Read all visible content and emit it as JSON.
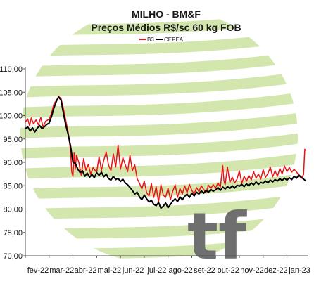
{
  "chart_data": {
    "type": "line",
    "title": "MILHO - BM&F",
    "subtitle": "Preços Médios R$/sc 60 kg FOB",
    "legend_position": "top",
    "ylim": [
      70,
      110
    ],
    "y_ticks": [
      "110,00",
      "105,00",
      "100,00",
      "95,00",
      "90,00",
      "85,00",
      "80,00",
      "75,00",
      "70,00"
    ],
    "y_tick_values": [
      110,
      105,
      100,
      95,
      90,
      85,
      80,
      75,
      70
    ],
    "x_ticks": [
      "fev-22",
      "mar-22",
      "abr-22",
      "mai-22",
      "jun-22",
      "jul-22",
      "ago-22",
      "set-22",
      "out-22",
      "nov-22",
      "dez-22",
      "jan-23"
    ],
    "xlim": [
      0,
      11.9
    ],
    "grid": false,
    "watermark_text": "tf",
    "colors": {
      "b3": "#ee1111",
      "cepea": "#000000",
      "bands": "#d3e6ad",
      "watermark": "#6f6f6f"
    },
    "series": [
      {
        "name": "B3",
        "color": "#ee1111",
        "points": [
          [
            0.0,
            98.6
          ],
          [
            0.1,
            99.3
          ],
          [
            0.18,
            97.8
          ],
          [
            0.25,
            99.5
          ],
          [
            0.35,
            98.2
          ],
          [
            0.45,
            99.1
          ],
          [
            0.55,
            98.0
          ],
          [
            0.65,
            99.6
          ],
          [
            0.75,
            97.5
          ],
          [
            0.85,
            98.8
          ],
          [
            1.0,
            99.2
          ],
          [
            1.1,
            100.5
          ],
          [
            1.2,
            102.5
          ],
          [
            1.3,
            103.2
          ],
          [
            1.4,
            104.1
          ],
          [
            1.5,
            103.7
          ],
          [
            1.6,
            101.5
          ],
          [
            1.7,
            99.0
          ],
          [
            1.8,
            96.5
          ],
          [
            1.9,
            92.5
          ],
          [
            1.95,
            88.0
          ],
          [
            2.0,
            87.0
          ],
          [
            2.05,
            92.0
          ],
          [
            2.1,
            88.5
          ],
          [
            2.15,
            91.5
          ],
          [
            2.25,
            90.0
          ],
          [
            2.35,
            87.2
          ],
          [
            2.45,
            90.8
          ],
          [
            2.55,
            88.3
          ],
          [
            2.65,
            89.6
          ],
          [
            2.75,
            87.4
          ],
          [
            2.85,
            88.9
          ],
          [
            3.0,
            87.8
          ],
          [
            3.1,
            91.2
          ],
          [
            3.2,
            88.3
          ],
          [
            3.3,
            90.5
          ],
          [
            3.4,
            92.2
          ],
          [
            3.5,
            89.4
          ],
          [
            3.6,
            88.2
          ],
          [
            3.7,
            91.8
          ],
          [
            3.8,
            89.0
          ],
          [
            3.9,
            93.7
          ],
          [
            4.0,
            88.5
          ],
          [
            4.1,
            91.0
          ],
          [
            4.2,
            89.5
          ],
          [
            4.3,
            88.0
          ],
          [
            4.4,
            91.5
          ],
          [
            4.5,
            88.2
          ],
          [
            4.6,
            89.5
          ],
          [
            4.7,
            86.5
          ],
          [
            4.8,
            85.5
          ],
          [
            4.9,
            84.3
          ],
          [
            5.0,
            86.0
          ],
          [
            5.1,
            83.5
          ],
          [
            5.2,
            82.8
          ],
          [
            5.3,
            85.5
          ],
          [
            5.4,
            82.5
          ],
          [
            5.5,
            84.8
          ],
          [
            5.6,
            81.5
          ],
          [
            5.7,
            85.2
          ],
          [
            5.8,
            83.0
          ],
          [
            5.9,
            82.5
          ],
          [
            6.0,
            84.5
          ],
          [
            6.1,
            82.0
          ],
          [
            6.2,
            83.8
          ],
          [
            6.3,
            85.2
          ],
          [
            6.4,
            82.5
          ],
          [
            6.5,
            84.4
          ],
          [
            6.6,
            83.2
          ],
          [
            6.7,
            85.0
          ],
          [
            6.8,
            83.5
          ],
          [
            6.9,
            85.3
          ],
          [
            7.0,
            84.0
          ],
          [
            7.1,
            83.2
          ],
          [
            7.2,
            84.6
          ],
          [
            7.3,
            83.7
          ],
          [
            7.4,
            85.0
          ],
          [
            7.5,
            84.2
          ],
          [
            7.6,
            83.6
          ],
          [
            7.7,
            85.1
          ],
          [
            7.8,
            84.4
          ],
          [
            7.9,
            85.2
          ],
          [
            8.0,
            84.5
          ],
          [
            8.1,
            85.6
          ],
          [
            8.2,
            84.7
          ],
          [
            8.3,
            89.3
          ],
          [
            8.35,
            86.0
          ],
          [
            8.4,
            85.2
          ],
          [
            8.5,
            89.0
          ],
          [
            8.6,
            85.7
          ],
          [
            8.7,
            86.8
          ],
          [
            8.8,
            85.6
          ],
          [
            8.9,
            86.4
          ],
          [
            9.0,
            88.2
          ],
          [
            9.1,
            85.5
          ],
          [
            9.2,
            87.0
          ],
          [
            9.3,
            86.0
          ],
          [
            9.4,
            87.2
          ],
          [
            9.5,
            86.2
          ],
          [
            9.6,
            88.0
          ],
          [
            9.7,
            86.6
          ],
          [
            9.8,
            87.5
          ],
          [
            9.9,
            86.4
          ],
          [
            10.0,
            88.4
          ],
          [
            10.1,
            86.8
          ],
          [
            10.2,
            87.6
          ],
          [
            10.3,
            89.0
          ],
          [
            10.4,
            86.9
          ],
          [
            10.5,
            88.2
          ],
          [
            10.6,
            87.0
          ],
          [
            10.7,
            88.7
          ],
          [
            10.8,
            87.5
          ],
          [
            10.9,
            89.2
          ],
          [
            11.0,
            88.0
          ],
          [
            11.1,
            88.9
          ],
          [
            11.2,
            87.9
          ],
          [
            11.3,
            88.5
          ],
          [
            11.4,
            88.0
          ],
          [
            11.5,
            87.2
          ],
          [
            11.6,
            86.6
          ],
          [
            11.7,
            87.4
          ],
          [
            11.75,
            92.8
          ],
          [
            11.8,
            92.5
          ]
        ]
      },
      {
        "name": "CEPEA",
        "color": "#000000",
        "points": [
          [
            0.0,
            97.2
          ],
          [
            0.1,
            97.6
          ],
          [
            0.2,
            96.7
          ],
          [
            0.3,
            97.4
          ],
          [
            0.4,
            96.5
          ],
          [
            0.5,
            97.3
          ],
          [
            0.6,
            97.9
          ],
          [
            0.7,
            97.2
          ],
          [
            0.8,
            97.6
          ],
          [
            0.9,
            98.1
          ],
          [
            1.0,
            98.4
          ],
          [
            1.1,
            99.8
          ],
          [
            1.2,
            101.6
          ],
          [
            1.3,
            103.0
          ],
          [
            1.4,
            104.0
          ],
          [
            1.5,
            103.3
          ],
          [
            1.6,
            100.5
          ],
          [
            1.7,
            98.0
          ],
          [
            1.8,
            96.0
          ],
          [
            1.9,
            93.5
          ],
          [
            2.0,
            90.0
          ],
          [
            2.1,
            89.8
          ],
          [
            2.2,
            88.6
          ],
          [
            2.3,
            87.8
          ],
          [
            2.4,
            88.2
          ],
          [
            2.5,
            87.0
          ],
          [
            2.6,
            87.7
          ],
          [
            2.7,
            86.8
          ],
          [
            2.8,
            87.4
          ],
          [
            2.9,
            86.7
          ],
          [
            3.0,
            87.8
          ],
          [
            3.1,
            87.2
          ],
          [
            3.2,
            87.9
          ],
          [
            3.3,
            86.9
          ],
          [
            3.4,
            87.5
          ],
          [
            3.5,
            86.5
          ],
          [
            3.6,
            86.2
          ],
          [
            3.7,
            87.0
          ],
          [
            3.8,
            86.3
          ],
          [
            3.9,
            86.6
          ],
          [
            4.0,
            85.9
          ],
          [
            4.1,
            86.4
          ],
          [
            4.2,
            85.6
          ],
          [
            4.3,
            85.2
          ],
          [
            4.4,
            84.6
          ],
          [
            4.5,
            84.0
          ],
          [
            4.6,
            83.2
          ],
          [
            4.7,
            83.6
          ],
          [
            4.8,
            82.6
          ],
          [
            4.9,
            82.0
          ],
          [
            5.0,
            83.0
          ],
          [
            5.1,
            82.2
          ],
          [
            5.2,
            81.5
          ],
          [
            5.3,
            81.9
          ],
          [
            5.4,
            81.0
          ],
          [
            5.5,
            80.7
          ],
          [
            5.6,
            81.4
          ],
          [
            5.7,
            80.2
          ],
          [
            5.8,
            80.6
          ],
          [
            5.9,
            81.3
          ],
          [
            6.0,
            80.3
          ],
          [
            6.1,
            81.0
          ],
          [
            6.2,
            81.7
          ],
          [
            6.3,
            82.2
          ],
          [
            6.4,
            81.6
          ],
          [
            6.5,
            82.6
          ],
          [
            6.6,
            82.0
          ],
          [
            6.7,
            82.7
          ],
          [
            6.8,
            83.2
          ],
          [
            6.9,
            82.5
          ],
          [
            7.0,
            83.4
          ],
          [
            7.1,
            82.8
          ],
          [
            7.2,
            83.6
          ],
          [
            7.3,
            83.2
          ],
          [
            7.4,
            83.9
          ],
          [
            7.5,
            83.4
          ],
          [
            7.6,
            84.0
          ],
          [
            7.7,
            83.6
          ],
          [
            7.8,
            84.2
          ],
          [
            7.9,
            83.8
          ],
          [
            8.0,
            84.1
          ],
          [
            8.1,
            84.6
          ],
          [
            8.2,
            84.0
          ],
          [
            8.3,
            84.7
          ],
          [
            8.4,
            84.3
          ],
          [
            8.5,
            84.8
          ],
          [
            8.6,
            84.4
          ],
          [
            8.7,
            85.0
          ],
          [
            8.8,
            84.5
          ],
          [
            8.9,
            85.1
          ],
          [
            9.0,
            84.9
          ],
          [
            9.1,
            85.3
          ],
          [
            9.2,
            84.8
          ],
          [
            9.3,
            85.4
          ],
          [
            9.4,
            85.0
          ],
          [
            9.5,
            85.6
          ],
          [
            9.6,
            85.2
          ],
          [
            9.7,
            85.8
          ],
          [
            9.8,
            85.3
          ],
          [
            9.9,
            85.7
          ],
          [
            10.0,
            85.5
          ],
          [
            10.1,
            86.0
          ],
          [
            10.2,
            85.6
          ],
          [
            10.3,
            86.2
          ],
          [
            10.4,
            85.8
          ],
          [
            10.5,
            86.3
          ],
          [
            10.6,
            86.0
          ],
          [
            10.7,
            86.5
          ],
          [
            10.8,
            86.1
          ],
          [
            10.9,
            86.6
          ],
          [
            11.0,
            86.2
          ],
          [
            11.1,
            86.7
          ],
          [
            11.2,
            86.3
          ],
          [
            11.3,
            87.0
          ],
          [
            11.4,
            86.6
          ],
          [
            11.5,
            87.3
          ],
          [
            11.6,
            86.8
          ],
          [
            11.7,
            86.4
          ],
          [
            11.8,
            86.0
          ]
        ]
      }
    ]
  }
}
